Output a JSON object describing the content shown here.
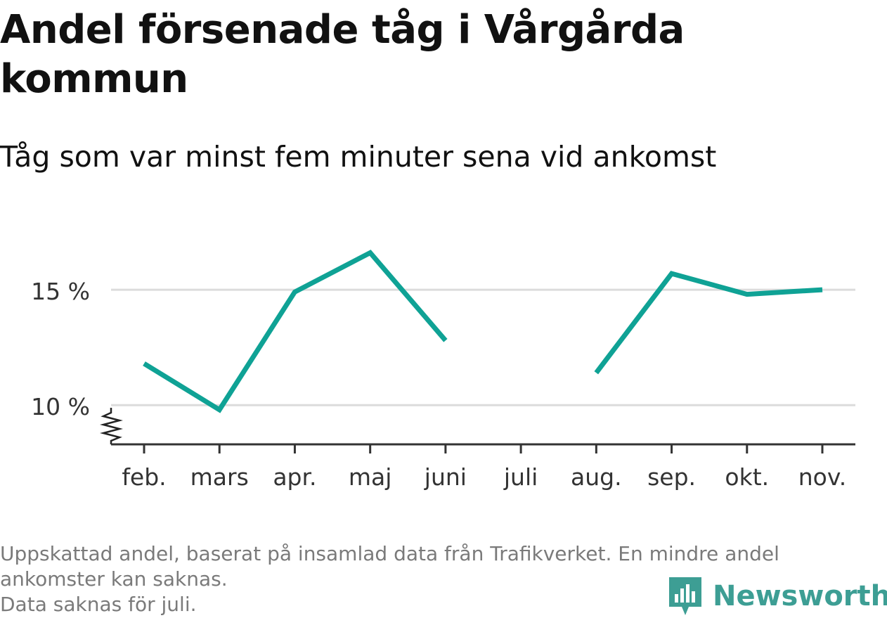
{
  "header": {
    "title": "Andel försenade tåg i Vårgårda kommun",
    "subtitle": "Tåg som var minst fem minuter sena vid ankomst"
  },
  "chart_data": {
    "type": "line",
    "title": "Andel försenade tåg i Vårgårda kommun",
    "subtitle": "Tåg som var minst fem minuter sena vid ankomst",
    "categories": [
      "feb.",
      "mars",
      "apr.",
      "maj",
      "juni",
      "juli",
      "aug.",
      "sep.",
      "okt.",
      "nov."
    ],
    "series": [
      {
        "values": [
          11.8,
          9.8,
          14.9,
          16.6,
          12.8,
          null,
          11.4,
          15.7,
          14.8,
          15.0
        ]
      }
    ],
    "ylim": [
      8.3,
      17.5
    ],
    "yticks": [
      10,
      15
    ],
    "ytick_labels": [
      "10 %",
      "15 %"
    ],
    "y_axis_break": true,
    "grid": true,
    "legend": "none",
    "line_color": "#0fa295",
    "xlabel": "",
    "ylabel": ""
  },
  "footer": {
    "note_line1": "Uppskattad andel, baserat på insamlad data från Trafikverket. En mindre andel",
    "note_line2": "ankomster kan saknas.",
    "note_line3": "Data saknas för juli.",
    "brand": "Newsworthy",
    "brand_color": "#3d9e94"
  }
}
